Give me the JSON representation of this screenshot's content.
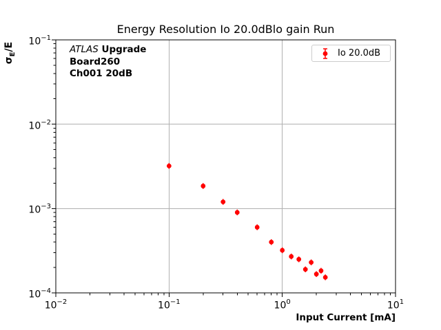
{
  "title": "Energy Resolution Io 20.0dBlo gain Run",
  "axis": {
    "xlabel": "Input Current [mA]",
    "ylabel": {
      "main": "σ",
      "sub": "E",
      "rest": "/E"
    }
  },
  "annotation": {
    "line1_italic": "ATLAS",
    "line1_bold": "Upgrade",
    "line2": "Board260",
    "line3": "Ch001 20dB"
  },
  "legend": {
    "label": "Io 20.0dB",
    "position": "upper right"
  },
  "colors": {
    "marker": "#ff0000",
    "grid": "#b0b0b0",
    "axis": "#000000",
    "legend_border": "#cccccc",
    "background": "#ffffff"
  },
  "chart_data": {
    "type": "scatter",
    "title": "Energy Resolution Io 20.0dBlo gain Run",
    "xlabel": "Input Current [mA]",
    "ylabel": "σ_E/E",
    "xscale": "log",
    "yscale": "log",
    "xlim": [
      0.01,
      10
    ],
    "ylim": [
      0.0001,
      0.1
    ],
    "grid": true,
    "legend_position": "upper right",
    "x_tick_exponents": [
      -2,
      -1,
      0,
      1
    ],
    "y_tick_exponents": [
      -1,
      -2,
      -3,
      -4
    ],
    "series": [
      {
        "name": "Io 20.0dB",
        "color": "#ff0000",
        "marker": "circle-with-errorbar",
        "x": [
          0.1,
          0.2,
          0.3,
          0.4,
          0.6,
          0.8,
          1.0,
          1.2,
          1.4,
          1.6,
          1.8,
          2.0,
          2.2,
          2.4
        ],
        "y": [
          0.0032,
          0.00185,
          0.0012,
          0.0009,
          0.0006,
          0.0004,
          0.00032,
          0.00027,
          0.00025,
          0.00019,
          0.00023,
          0.000167,
          0.000183,
          0.000153
        ]
      }
    ]
  }
}
